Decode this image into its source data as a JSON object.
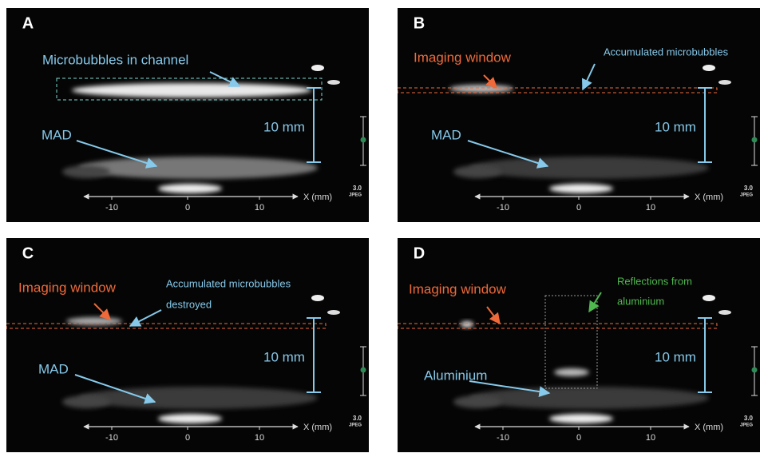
{
  "panels": [
    {
      "letter": "A",
      "labels": [
        "Microbubbles in channel",
        "MAD"
      ]
    },
    {
      "letter": "B",
      "labels": [
        "Imaging window",
        "Accumulated microbubbles",
        "MAD"
      ]
    },
    {
      "letter": "C",
      "labels": [
        "Imaging window",
        "Accumulated microbubbles",
        "destroyed",
        "MAD"
      ]
    },
    {
      "letter": "D",
      "labels": [
        "Imaging window",
        "Reflections from",
        "aluminium",
        "Aluminium"
      ]
    }
  ],
  "scale_bar": "10 mm",
  "axis": {
    "label": "X (mm)",
    "ticks": [
      "-10",
      "0",
      "10"
    ]
  },
  "badge": {
    "value": "3.0",
    "label": "JPEG"
  }
}
